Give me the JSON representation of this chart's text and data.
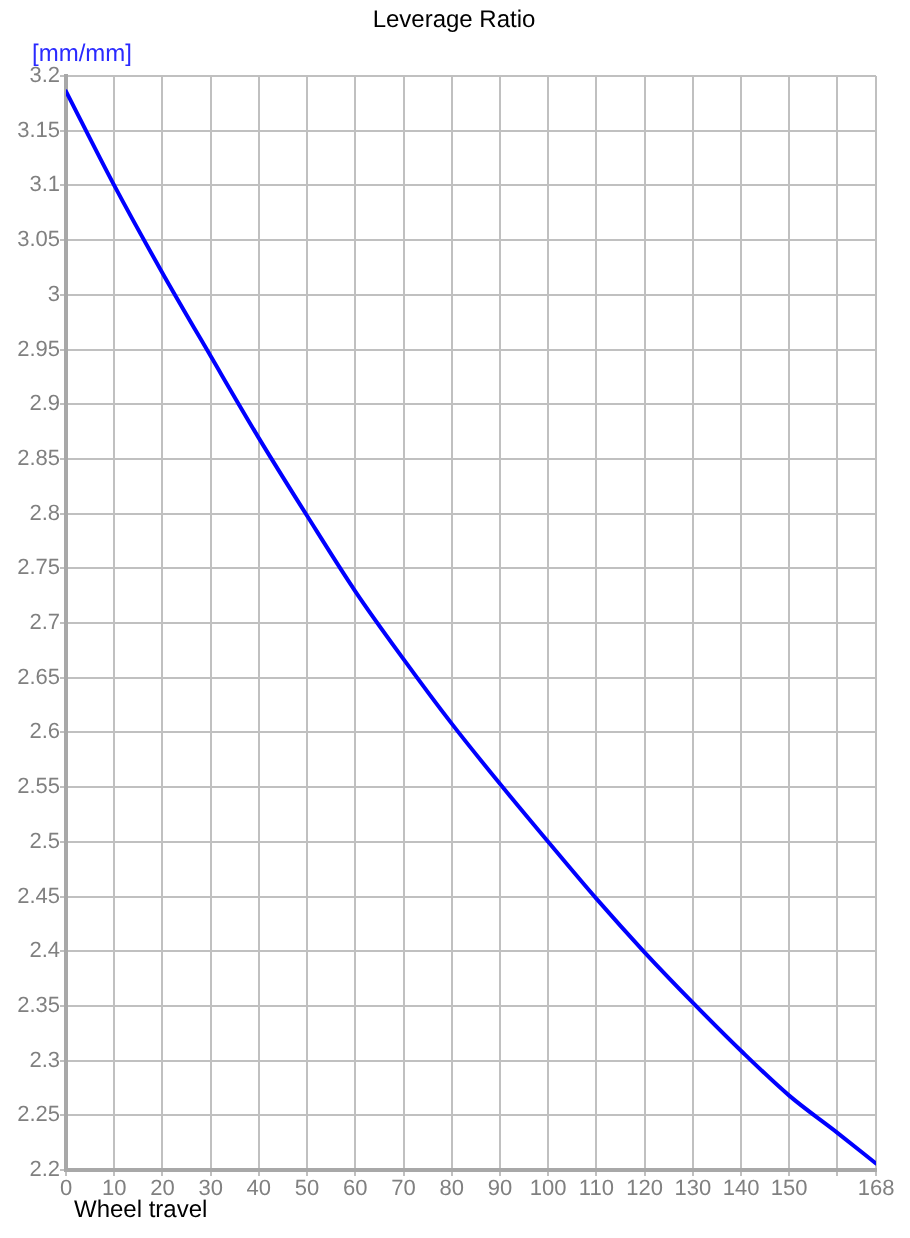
{
  "chart_data": {
    "type": "line",
    "title": "Leverage Ratio",
    "xlabel": "Wheel travel",
    "ylabel": "[mm/mm]",
    "x": [
      0,
      10,
      20,
      30,
      40,
      50,
      60,
      70,
      80,
      90,
      100,
      110,
      120,
      130,
      140,
      150,
      160,
      168
    ],
    "values": [
      3.186,
      3.1,
      3.02,
      2.944,
      2.869,
      2.798,
      2.729,
      2.667,
      2.608,
      2.553,
      2.5,
      2.448,
      2.399,
      2.353,
      2.309,
      2.268,
      2.234,
      2.206
    ],
    "color": "#0000ff",
    "xlim": [
      0,
      168
    ],
    "xticks": [
      0,
      10,
      20,
      30,
      40,
      50,
      60,
      70,
      80,
      90,
      100,
      110,
      120,
      130,
      140,
      150,
      {
        "value": 160,
        "label": null
      },
      168
    ],
    "ylim": [
      2.2,
      3.2
    ],
    "yticks": [
      2.2,
      2.25,
      2.3,
      2.35,
      2.4,
      2.45,
      2.5,
      2.55,
      2.6,
      2.65,
      2.7,
      2.75,
      2.8,
      2.85,
      2.9,
      2.95,
      3,
      3.05,
      3.1,
      3.15,
      3.2
    ],
    "grid": true,
    "marker": "none",
    "line_style": "solid"
  }
}
